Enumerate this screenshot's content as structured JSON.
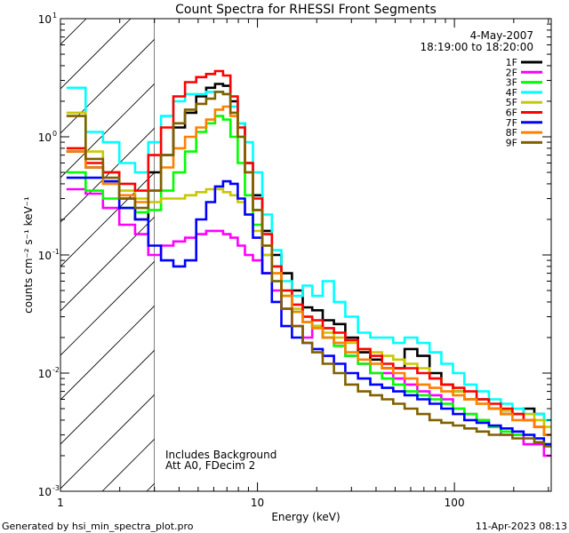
{
  "chart_data": {
    "type": "line",
    "title": "Count Spectra for RHESSI Front Segments",
    "xlabel": "Energy (keV)",
    "ylabel": "counts cm⁻² s⁻¹ keV⁻¹",
    "xscale": "log",
    "yscale": "log",
    "xlim": [
      1,
      310
    ],
    "ylim": [
      0.001,
      10
    ],
    "x_ticks": [
      {
        "value": 1,
        "label": "1"
      },
      {
        "value": 10,
        "label": "10"
      },
      {
        "value": 100,
        "label": "100"
      }
    ],
    "y_ticks": [
      {
        "value": 10,
        "label": "10",
        "exp": "1"
      },
      {
        "value": 1,
        "label": "10",
        "exp": "0"
      },
      {
        "value": 0.1,
        "label": "10",
        "exp": "-1"
      },
      {
        "value": 0.01,
        "label": "10",
        "exp": "-2"
      },
      {
        "value": 0.001,
        "label": "10",
        "exp": "-3"
      }
    ],
    "hatched_region": {
      "x_from": 1,
      "x_to": 3
    },
    "date": "4-May-2007",
    "time_range": "18:19:00 to 18:20:00",
    "annotations": [
      "Includes Background",
      "Att A0, FDecim 2"
    ],
    "legend_position": "top-right",
    "energies": [
      1.2,
      1.5,
      1.8,
      2.2,
      2.6,
      3.0,
      3.5,
      4.0,
      4.6,
      5.2,
      5.8,
      6.4,
      7.0,
      7.6,
      8.3,
      9.0,
      10.0,
      11.2,
      12.5,
      14.0,
      16,
      18,
      20,
      23,
      26,
      30,
      35,
      40,
      46,
      52,
      60,
      70,
      80,
      92,
      105,
      120,
      140,
      160,
      185,
      210,
      240,
      270,
      300
    ],
    "series": [
      {
        "name": "1F",
        "color": "#000000",
        "values": [
          0.75,
          0.55,
          0.5,
          0.3,
          0.2,
          0.5,
          0.7,
          1.2,
          1.6,
          2.2,
          2.6,
          2.8,
          2.7,
          2.0,
          1.3,
          0.6,
          0.32,
          0.16,
          0.1,
          0.07,
          0.05,
          0.036,
          0.034,
          0.028,
          0.026,
          0.02,
          0.015,
          0.013,
          0.011,
          0.011,
          0.016,
          0.014,
          0.01,
          0.008,
          0.007,
          0.006,
          0.006,
          0.005,
          0.0045,
          0.0045,
          0.005,
          0.0045,
          0.003
        ]
      },
      {
        "name": "2F",
        "color": "#ff00ff",
        "values": [
          0.36,
          0.33,
          0.25,
          0.18,
          0.15,
          0.1,
          0.12,
          0.13,
          0.14,
          0.15,
          0.16,
          0.16,
          0.15,
          0.14,
          0.12,
          0.1,
          0.09,
          0.07,
          0.05,
          0.035,
          0.025,
          0.02,
          0.025,
          0.02,
          0.018,
          0.014,
          0.012,
          0.01,
          0.01,
          0.009,
          0.008,
          0.007,
          0.0065,
          0.006,
          0.005,
          0.0045,
          0.004,
          0.0035,
          0.003,
          0.003,
          0.0025,
          0.0025,
          0.002
        ]
      },
      {
        "name": "3F",
        "color": "#00ff00",
        "values": [
          0.5,
          0.35,
          0.3,
          0.25,
          0.23,
          0.24,
          0.35,
          0.5,
          0.75,
          1.1,
          1.3,
          1.5,
          1.4,
          1.0,
          0.6,
          0.32,
          0.18,
          0.1,
          0.06,
          0.045,
          0.033,
          0.027,
          0.025,
          0.02,
          0.017,
          0.014,
          0.012,
          0.01,
          0.009,
          0.008,
          0.007,
          0.0065,
          0.006,
          0.0055,
          0.005,
          0.0045,
          0.004,
          0.0035,
          0.0032,
          0.003,
          0.003,
          0.0028,
          0.0025
        ]
      },
      {
        "name": "4F",
        "color": "#00ffff",
        "values": [
          2.6,
          1.1,
          0.9,
          0.6,
          0.5,
          0.9,
          1.5,
          2.0,
          2.3,
          2.3,
          2.4,
          2.4,
          2.3,
          1.8,
          1.3,
          0.9,
          0.5,
          0.22,
          0.11,
          0.06,
          0.045,
          0.055,
          0.045,
          0.06,
          0.04,
          0.03,
          0.022,
          0.02,
          0.02,
          0.018,
          0.02,
          0.018,
          0.015,
          0.012,
          0.01,
          0.008,
          0.007,
          0.006,
          0.0055,
          0.005,
          0.0045,
          0.0045,
          0.004
        ]
      },
      {
        "name": "5F",
        "color": "#c8c800",
        "values": [
          1.6,
          0.75,
          0.5,
          0.35,
          0.3,
          0.28,
          0.3,
          0.3,
          0.32,
          0.34,
          0.36,
          0.36,
          0.34,
          0.32,
          0.28,
          0.22,
          0.16,
          0.1,
          0.07,
          0.05,
          0.035,
          0.03,
          0.025,
          0.022,
          0.02,
          0.018,
          0.016,
          0.015,
          0.014,
          0.013,
          0.012,
          0.011,
          0.009,
          0.008,
          0.007,
          0.006,
          0.0055,
          0.005,
          0.0048,
          0.0045,
          0.0045,
          0.004,
          0.0035
        ]
      },
      {
        "name": "6F",
        "color": "#ff0000",
        "values": [
          0.8,
          0.6,
          0.5,
          0.4,
          0.35,
          0.7,
          1.2,
          2.2,
          2.9,
          3.2,
          3.4,
          3.6,
          3.3,
          2.2,
          1.2,
          0.6,
          0.3,
          0.15,
          0.08,
          0.05,
          0.038,
          0.03,
          0.028,
          0.024,
          0.022,
          0.019,
          0.016,
          0.014,
          0.012,
          0.011,
          0.011,
          0.01,
          0.009,
          0.008,
          0.0075,
          0.007,
          0.006,
          0.0055,
          0.005,
          0.0045,
          0.004,
          0.0035,
          0.003
        ]
      },
      {
        "name": "7F",
        "color": "#0000ff",
        "values": [
          0.45,
          0.45,
          0.42,
          0.25,
          0.2,
          0.12,
          0.09,
          0.08,
          0.09,
          0.2,
          0.28,
          0.38,
          0.42,
          0.4,
          0.3,
          0.22,
          0.14,
          0.07,
          0.04,
          0.025,
          0.02,
          0.018,
          0.016,
          0.014,
          0.012,
          0.01,
          0.009,
          0.008,
          0.0075,
          0.007,
          0.0065,
          0.006,
          0.0055,
          0.005,
          0.0045,
          0.004,
          0.0038,
          0.0036,
          0.0034,
          0.0032,
          0.003,
          0.0028,
          0.0025
        ]
      },
      {
        "name": "8F",
        "color": "#ff8000",
        "values": [
          0.75,
          0.55,
          0.4,
          0.32,
          0.28,
          0.35,
          0.55,
          0.8,
          1.0,
          1.2,
          1.4,
          1.7,
          1.8,
          1.5,
          1.0,
          0.5,
          0.24,
          0.12,
          0.07,
          0.045,
          0.033,
          0.027,
          0.024,
          0.02,
          0.018,
          0.015,
          0.013,
          0.012,
          0.011,
          0.01,
          0.009,
          0.008,
          0.0075,
          0.007,
          0.0065,
          0.006,
          0.0055,
          0.005,
          0.0045,
          0.004,
          0.004,
          0.0035,
          0.003
        ]
      },
      {
        "name": "9F",
        "color": "#806000",
        "values": [
          1.5,
          0.65,
          0.45,
          0.3,
          0.25,
          0.35,
          0.7,
          1.3,
          1.7,
          1.9,
          2.1,
          2.4,
          2.3,
          1.6,
          1.0,
          0.5,
          0.24,
          0.12,
          0.06,
          0.035,
          0.025,
          0.018,
          0.015,
          0.012,
          0.01,
          0.008,
          0.007,
          0.0065,
          0.006,
          0.0055,
          0.005,
          0.0045,
          0.004,
          0.0038,
          0.0036,
          0.0034,
          0.0032,
          0.003,
          0.003,
          0.0028,
          0.0028,
          0.0026,
          0.0024
        ]
      }
    ]
  },
  "footer": {
    "generator": "Generated by hsi_min_spectra_plot.pro",
    "timestamp": "11-Apr-2023 08:13"
  }
}
